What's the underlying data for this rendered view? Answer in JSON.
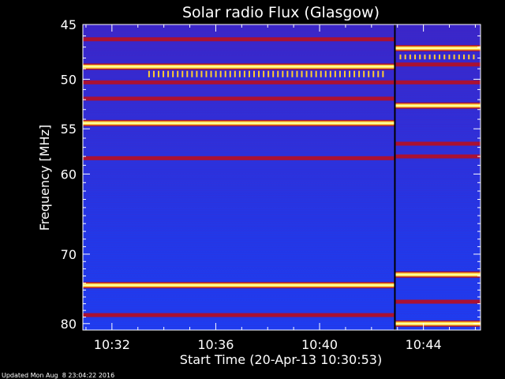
{
  "chart_data": {
    "type": "heatmap",
    "title": "Solar radio Flux (Glasgow)",
    "ylabel": "Frequency [MHz]",
    "xlabel": "Start Time (20-Apr-13 10:30:53)",
    "footer": "Updated Mon Aug  8 23:04:22 2016",
    "y_scale": "log",
    "ylim": [
      45,
      81
    ],
    "xlim_minutes": [
      30.88,
      46.2
    ],
    "x_ticks": [
      {
        "label": "10:32",
        "minute": 32
      },
      {
        "label": "10:36",
        "minute": 36
      },
      {
        "label": "10:40",
        "minute": 40
      },
      {
        "label": "10:44",
        "minute": 44
      }
    ],
    "y_ticks": [
      {
        "label": "45",
        "value": 45
      },
      {
        "label": "50",
        "value": 50
      },
      {
        "label": "55",
        "value": 55
      },
      {
        "label": "60",
        "value": 60
      },
      {
        "label": "70",
        "value": 70
      },
      {
        "label": "80",
        "value": 80
      }
    ],
    "segment_break_minute": 42.9,
    "colors": {
      "background": "#000000",
      "low": "#2233ee",
      "mid": "#6622aa",
      "band_dark": "#aa1133",
      "band_hot": "#ffcc33",
      "band_peak": "#ffffaa",
      "text": "#ffffff"
    },
    "bands_segment_1": [
      {
        "mhz": 46.3,
        "level": "dark"
      },
      {
        "mhz": 48.8,
        "level": "hot"
      },
      {
        "mhz": 50.3,
        "level": "dark"
      },
      {
        "mhz": 51.9,
        "level": "dark"
      },
      {
        "mhz": 54.4,
        "level": "hot"
      },
      {
        "mhz": 58.2,
        "level": "dark"
      },
      {
        "mhz": 74.3,
        "level": "hot"
      },
      {
        "mhz": 78.7,
        "level": "dark"
      }
    ],
    "bands_segment_2": [
      {
        "mhz": 47.1,
        "level": "hot"
      },
      {
        "mhz": 48.6,
        "level": "dark"
      },
      {
        "mhz": 50.3,
        "level": "dark"
      },
      {
        "mhz": 52.6,
        "level": "hot"
      },
      {
        "mhz": 56.6,
        "level": "dark"
      },
      {
        "mhz": 58.0,
        "level": "dark"
      },
      {
        "mhz": 72.8,
        "level": "hot"
      },
      {
        "mhz": 76.7,
        "level": "dark"
      },
      {
        "mhz": 80.0,
        "level": "hot"
      }
    ]
  }
}
